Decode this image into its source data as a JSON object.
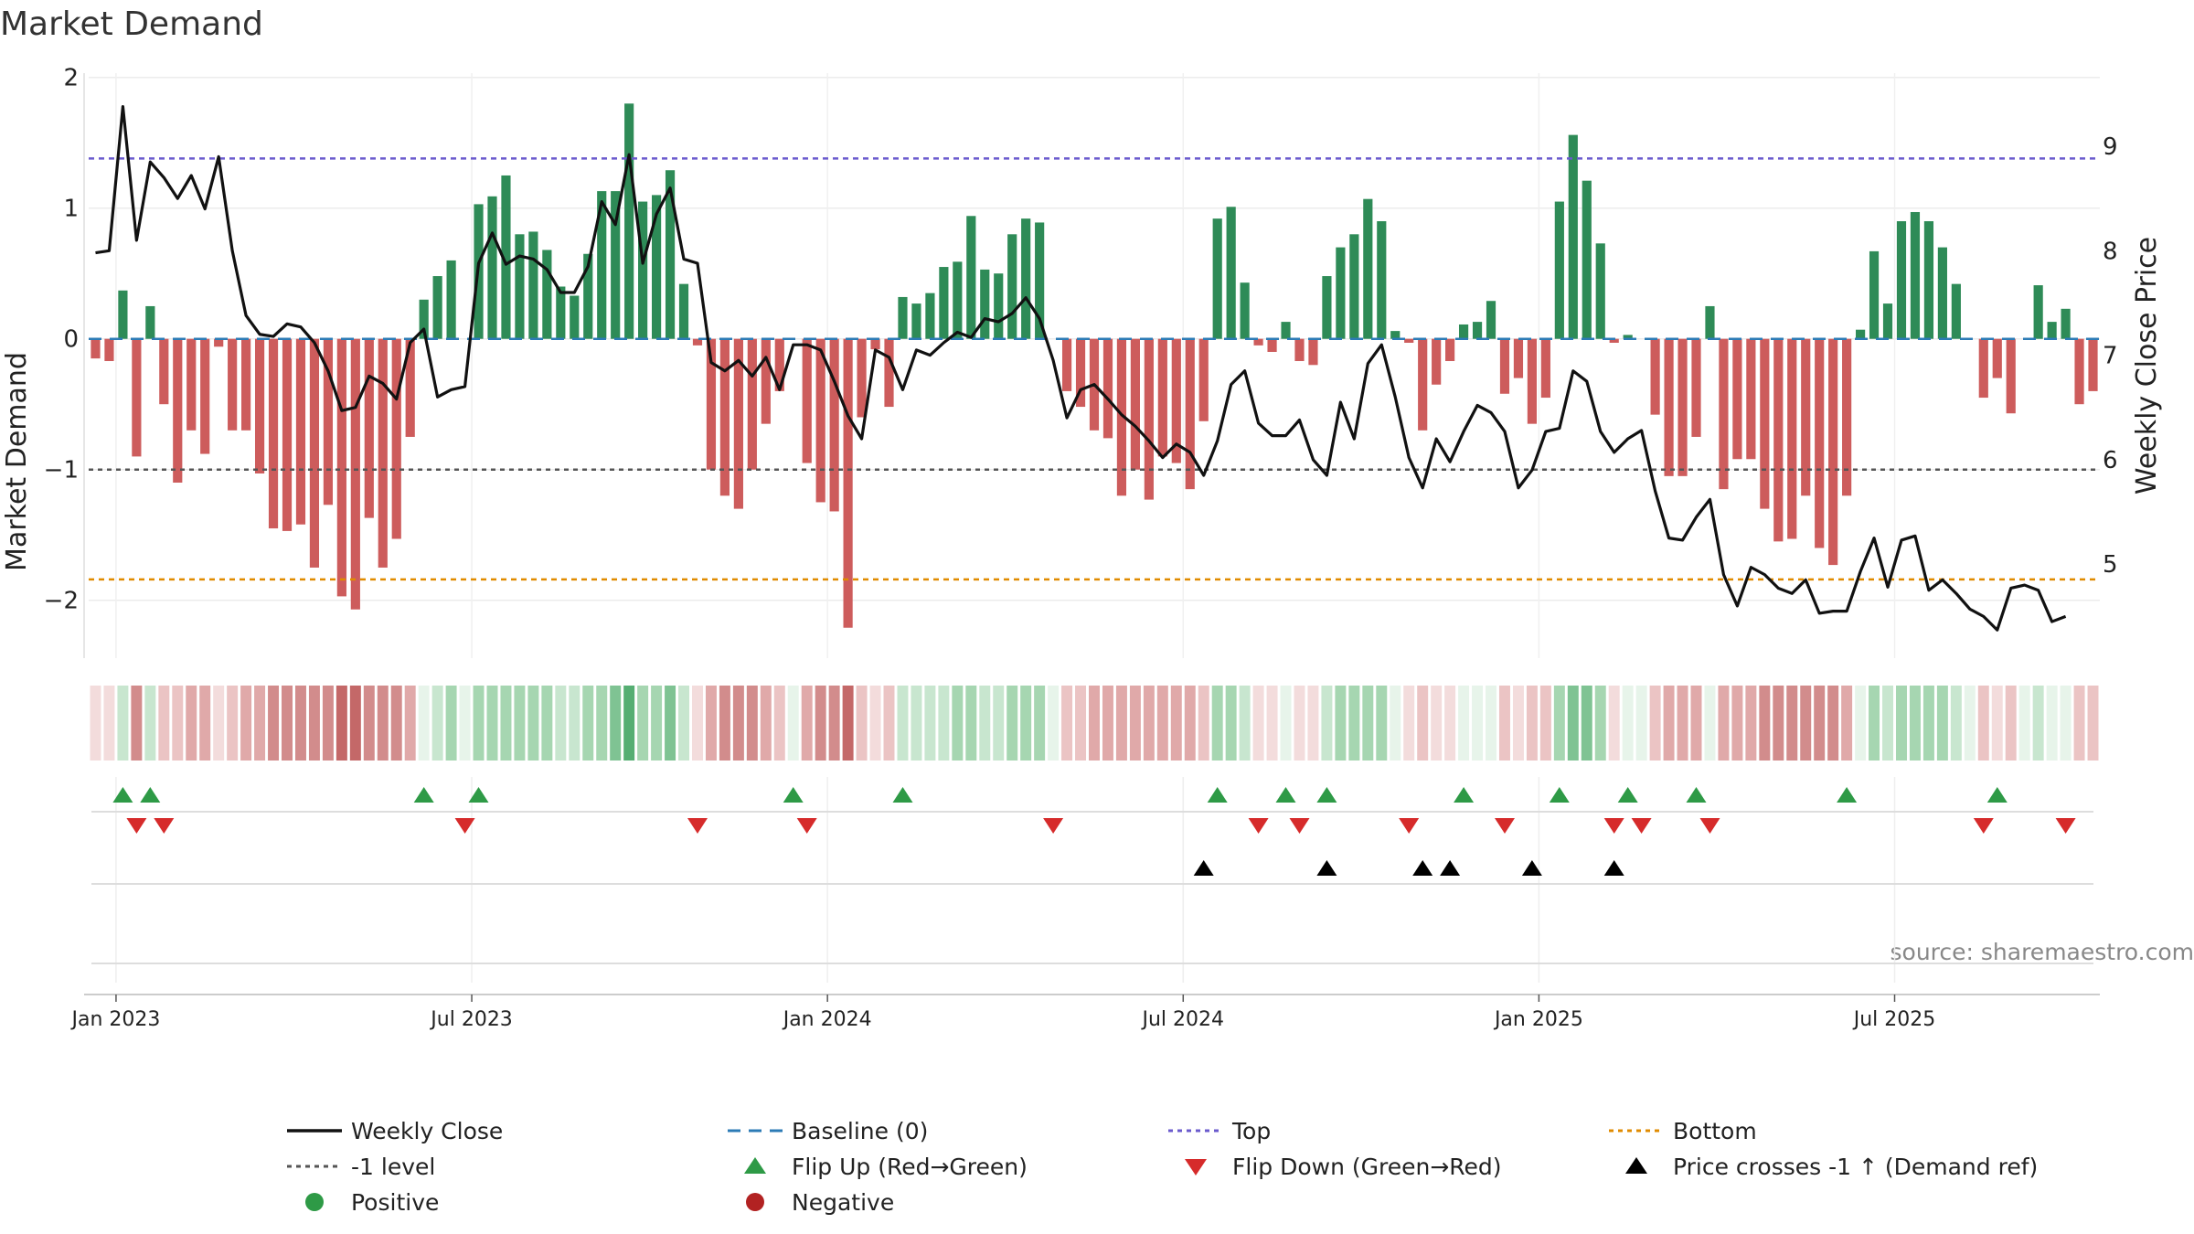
{
  "chart_data": {
    "type": "bar",
    "title": "Market Demand",
    "ylabel": "Market Demand",
    "y2label": "Weekly Close Price",
    "source": "source: sharemaestro.com",
    "ylim": [
      -2.45,
      2.0
    ],
    "y_ticks": [
      {
        "v": 2,
        "label": "2"
      },
      {
        "v": 1,
        "label": "1"
      },
      {
        "v": 0,
        "label": "0"
      },
      {
        "v": -1,
        "label": "−1"
      },
      {
        "v": -2,
        "label": "−2"
      }
    ],
    "y2lim": [
      4.1,
      9.5
    ],
    "y2_ticks": [
      {
        "v": 9,
        "label": "9"
      },
      {
        "v": 8,
        "label": "8"
      },
      {
        "v": 7,
        "label": "7"
      },
      {
        "v": 6,
        "label": "6"
      },
      {
        "v": 5,
        "label": "5"
      }
    ],
    "x_ticks": [
      {
        "i": 1.5,
        "label": "Jan 2023"
      },
      {
        "i": 27.5,
        "label": "Jul 2023"
      },
      {
        "i": 53.5,
        "label": "Jan 2024"
      },
      {
        "i": 79.5,
        "label": "Jul 2024"
      },
      {
        "i": 105.5,
        "label": "Jan 2025"
      },
      {
        "i": 131.5,
        "label": "Jul 2025"
      }
    ],
    "reference_lines": {
      "top": 1.38,
      "bottom": -1.84,
      "minus_one": -1.0,
      "baseline": 0
    },
    "demand": [
      -0.15,
      -0.17,
      0.37,
      -0.9,
      0.25,
      -0.5,
      -1.1,
      -0.7,
      -0.88,
      -0.06,
      -0.7,
      -0.7,
      -1.03,
      -1.45,
      -1.47,
      -1.42,
      -1.75,
      -1.27,
      -1.97,
      -2.07,
      -1.37,
      -1.75,
      -1.53,
      -0.75,
      0.3,
      0.48,
      0.6,
      0.0,
      1.03,
      1.09,
      1.25,
      0.8,
      0.82,
      0.68,
      0.4,
      0.33,
      0.65,
      1.13,
      1.13,
      1.8,
      1.05,
      1.1,
      1.29,
      0.42,
      -0.05,
      -1.0,
      -1.2,
      -1.3,
      -1.0,
      -0.65,
      -0.4,
      0.0,
      -0.95,
      -1.25,
      -1.32,
      -2.21,
      -0.6,
      -0.08,
      -0.52,
      0.32,
      0.27,
      0.35,
      0.55,
      0.59,
      0.94,
      0.53,
      0.5,
      0.8,
      0.92,
      0.89,
      0.0,
      -0.4,
      -0.52,
      -0.7,
      -0.76,
      -1.2,
      -1.0,
      -1.23,
      -0.9,
      -0.95,
      -1.15,
      -0.63,
      0.92,
      1.01,
      0.43,
      -0.05,
      -0.1,
      0.13,
      -0.17,
      -0.2,
      0.48,
      0.7,
      0.8,
      1.07,
      0.9,
      0.06,
      -0.03,
      -0.7,
      -0.35,
      -0.17,
      0.11,
      0.13,
      0.29,
      -0.42,
      -0.3,
      -0.65,
      -0.45,
      1.05,
      1.56,
      1.21,
      0.73,
      -0.03,
      0.03,
      0.0,
      -0.58,
      -1.05,
      -1.05,
      -0.75,
      0.25,
      -1.15,
      -0.92,
      -0.92,
      -1.3,
      -1.55,
      -1.53,
      -1.2,
      -1.6,
      -1.73,
      -1.2,
      0.07,
      0.67,
      0.27,
      0.9,
      0.97,
      0.9,
      0.7,
      0.42,
      0.0,
      -0.45,
      -0.3,
      -0.57,
      0.0,
      0.41,
      0.13,
      0.23,
      -0.5,
      -0.4
    ],
    "weekly_close": [
      7.98,
      8.0,
      9.38,
      8.1,
      8.85,
      8.7,
      8.5,
      8.72,
      8.4,
      8.9,
      8.0,
      7.38,
      7.2,
      7.18,
      7.3,
      7.27,
      7.12,
      6.85,
      6.47,
      6.5,
      6.8,
      6.73,
      6.58,
      7.12,
      7.25,
      6.6,
      6.67,
      6.7,
      7.88,
      8.17,
      7.87,
      7.95,
      7.92,
      7.82,
      7.6,
      7.6,
      7.85,
      8.47,
      8.25,
      8.92,
      7.88,
      8.35,
      8.6,
      7.92,
      7.88,
      6.93,
      6.85,
      6.95,
      6.8,
      6.98,
      6.67,
      7.1,
      7.1,
      7.05,
      6.75,
      6.42,
      6.2,
      7.05,
      6.98,
      6.67,
      7.05,
      7.0,
      7.12,
      7.22,
      7.17,
      7.35,
      7.32,
      7.4,
      7.55,
      7.35,
      6.95,
      6.4,
      6.67,
      6.72,
      6.58,
      6.43,
      6.32,
      6.18,
      6.02,
      6.15,
      6.07,
      5.85,
      6.18,
      6.72,
      6.85,
      6.35,
      6.23,
      6.23,
      6.38,
      6.0,
      5.85,
      6.55,
      6.2,
      6.92,
      7.1,
      6.6,
      6.02,
      5.73,
      6.2,
      5.98,
      6.27,
      6.52,
      6.45,
      6.27,
      5.73,
      5.9,
      6.27,
      6.3,
      6.85,
      6.75,
      6.27,
      6.07,
      6.2,
      6.28,
      5.7,
      5.25,
      5.23,
      5.45,
      5.62,
      4.9,
      4.6,
      4.97,
      4.9,
      4.77,
      4.72,
      4.85,
      4.53,
      4.55,
      4.55,
      4.93,
      5.25,
      4.78,
      5.23,
      5.27,
      4.75,
      4.85,
      4.72,
      4.57,
      4.5,
      4.37,
      4.77,
      4.8,
      4.75,
      4.45,
      4.5
    ],
    "heat_shade": [
      1,
      1,
      2,
      4,
      2,
      2,
      2,
      3,
      3,
      1,
      2,
      3,
      3,
      4,
      4,
      4,
      4,
      4,
      5,
      5,
      4,
      4,
      4,
      3,
      1,
      2,
      3,
      1,
      3,
      3,
      3,
      3,
      3,
      3,
      2,
      2,
      3,
      3,
      4,
      5,
      3,
      3,
      4,
      2,
      1,
      3,
      4,
      4,
      4,
      3,
      2,
      1,
      3,
      4,
      4,
      5,
      2,
      1,
      2,
      2,
      2,
      2,
      2,
      3,
      3,
      2,
      2,
      3,
      3,
      3,
      1,
      2,
      2,
      3,
      3,
      3,
      3,
      3,
      3,
      3,
      3,
      2,
      3,
      3,
      2,
      1,
      1,
      1,
      1,
      1,
      2,
      3,
      3,
      3,
      3,
      1,
      1,
      2,
      1,
      1,
      1,
      1,
      1,
      2,
      1,
      2,
      2,
      3,
      4,
      4,
      3,
      1,
      1,
      1,
      2,
      3,
      3,
      3,
      1,
      3,
      3,
      3,
      4,
      4,
      4,
      4,
      4,
      4,
      3,
      1,
      3,
      2,
      3,
      3,
      3,
      3,
      2,
      1,
      2,
      1,
      2,
      1,
      2,
      1,
      1,
      2,
      2
    ],
    "flip_up": [
      2,
      4,
      24,
      28,
      51,
      59,
      82,
      87,
      90,
      100,
      107,
      112,
      117,
      128,
      139
    ],
    "flip_down": [
      3,
      5,
      27,
      44,
      52,
      70,
      85,
      88,
      96,
      103,
      111,
      113,
      118,
      138,
      144
    ],
    "price_cross_up": [
      81,
      90,
      97,
      99,
      105,
      111
    ],
    "legend": [
      {
        "key": "weekly_close",
        "label": "Weekly Close",
        "color": "#111111"
      },
      {
        "key": "baseline",
        "label": "Baseline (0)",
        "color": "#2c7bb6"
      },
      {
        "key": "top",
        "label": "Top",
        "color": "#6a5acd"
      },
      {
        "key": "bottom",
        "label": "Bottom",
        "color": "#e08b00"
      },
      {
        "key": "minus_one",
        "label": "-1 level",
        "color": "#555555"
      },
      {
        "key": "flip_up",
        "label": "Flip Up (Red→Green)",
        "color": "#2e9a46"
      },
      {
        "key": "flip_down",
        "label": "Flip Down (Green→Red)",
        "color": "#d62b2b"
      },
      {
        "key": "price_cross",
        "label": "Price crosses -1 ↑ (Demand ref)",
        "color": "#000000"
      },
      {
        "key": "positive",
        "label": "Positive",
        "color": "#2e9a46"
      },
      {
        "key": "negative",
        "label": "Negative",
        "color": "#b22222"
      }
    ],
    "colors": {
      "positive_bar": "#2e8b57",
      "negative_bar": "#cd5c5c"
    }
  }
}
